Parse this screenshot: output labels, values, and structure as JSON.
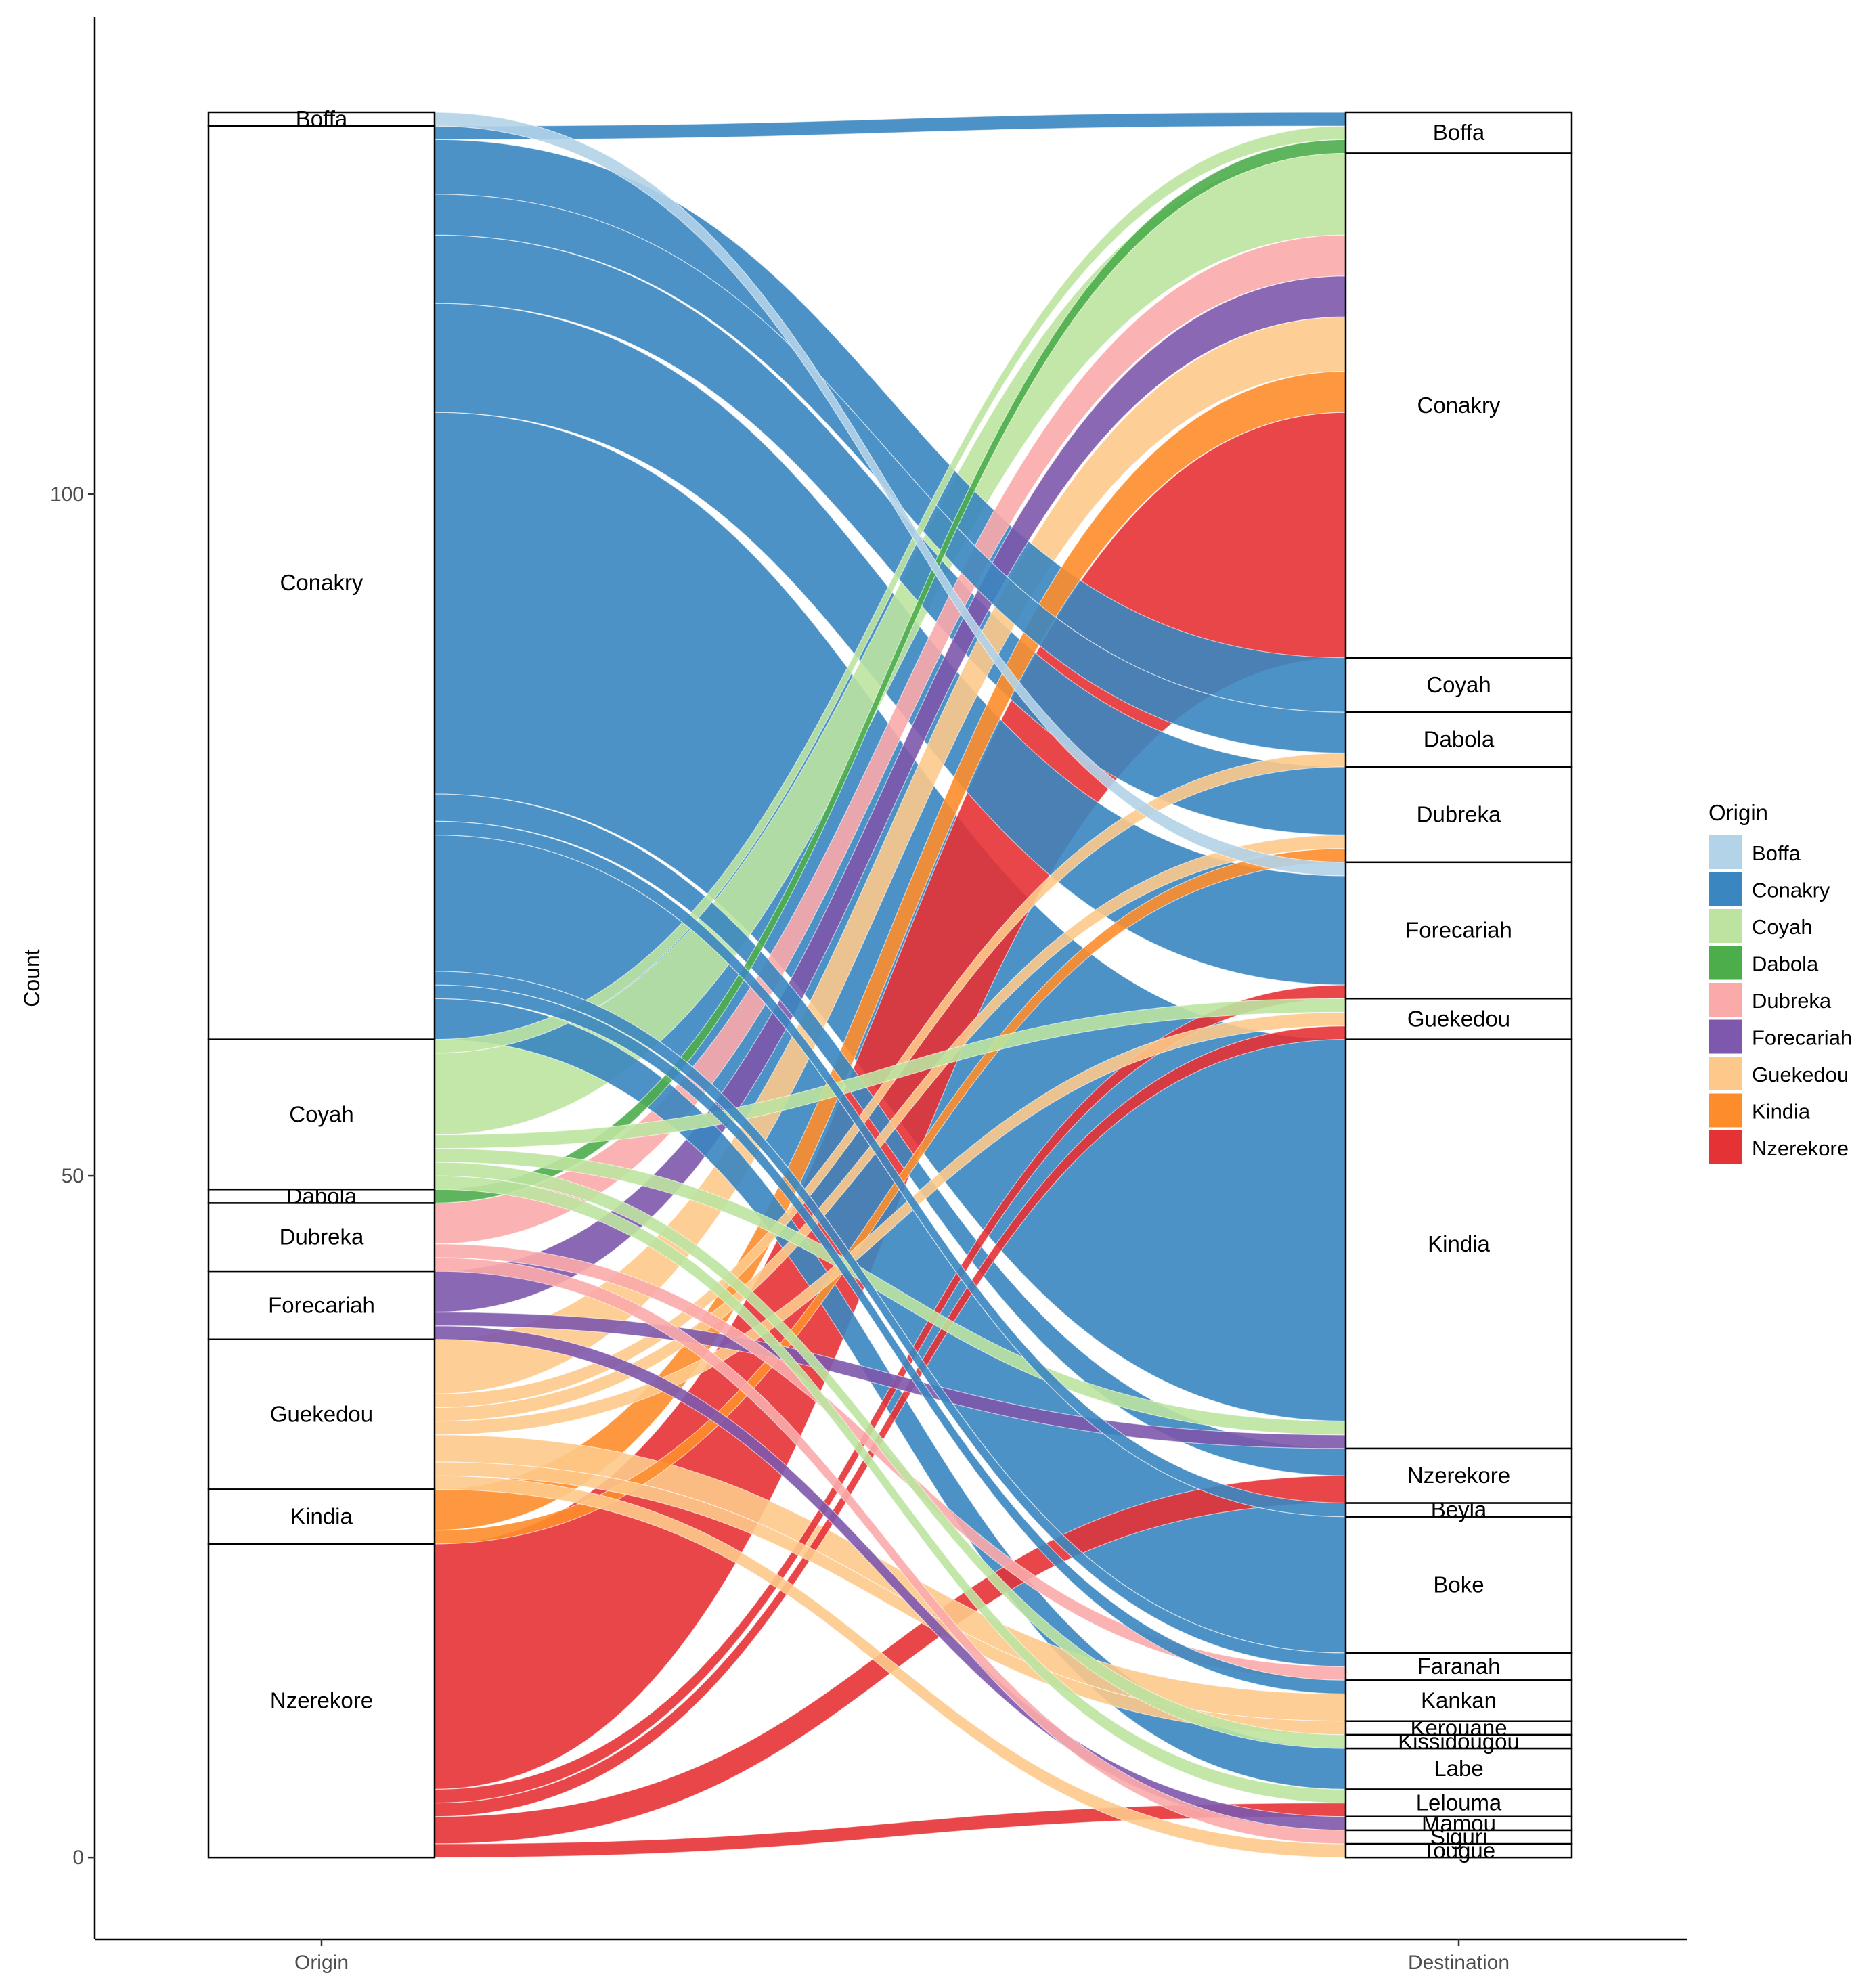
{
  "chart_data": {
    "type": "alluvial",
    "ylabel": "Count",
    "xlabel": "",
    "axes": [
      "Origin",
      "Destination"
    ],
    "ylim": [
      -6,
      135
    ],
    "yticks": [
      0,
      50,
      100
    ],
    "legend_title": "Origin",
    "legend_position": "right",
    "origin_strata": [
      "Nzerekore",
      "Kindia",
      "Guekedou",
      "Forecariah",
      "Dubreka",
      "Dabola",
      "Coyah",
      "Conakry",
      "Boffa"
    ],
    "destination_strata": [
      "Tougue",
      "Siguri",
      "Mamou",
      "Lelouma",
      "Labe",
      "Kissidougou",
      "Kerouane",
      "Kankan",
      "Faranah",
      "Boke",
      "Beyla",
      "Nzerekore",
      "Kindia",
      "Guekedou",
      "Forecariah",
      "Dubreka",
      "Dabola",
      "Coyah",
      "Conakry",
      "Boffa"
    ],
    "legend": [
      {
        "name": "Boffa",
        "color": "#b3d3e8"
      },
      {
        "name": "Conakry",
        "color": "#3a86c0"
      },
      {
        "name": "Coyah",
        "color": "#bde3a0"
      },
      {
        "name": "Dabola",
        "color": "#4cad4b"
      },
      {
        "name": "Dubreka",
        "color": "#fbaaaa"
      },
      {
        "name": "Forecariah",
        "color": "#7d58ac"
      },
      {
        "name": "Guekedou",
        "color": "#fdc98a"
      },
      {
        "name": "Kindia",
        "color": "#fd8d2b"
      },
      {
        "name": "Nzerekore",
        "color": "#e53235"
      }
    ],
    "flows": [
      {
        "origin": "Nzerekore",
        "destination": "Lelouma",
        "count": 1
      },
      {
        "origin": "Nzerekore",
        "destination": "Nzerekore",
        "count": 2
      },
      {
        "origin": "Nzerekore",
        "destination": "Guekedou",
        "count": 1
      },
      {
        "origin": "Nzerekore",
        "destination": "Forecariah",
        "count": 1
      },
      {
        "origin": "Nzerekore",
        "destination": "Conakry",
        "count": 18
      },
      {
        "origin": "Kindia",
        "destination": "Dubreka",
        "count": 1
      },
      {
        "origin": "Kindia",
        "destination": "Conakry",
        "count": 3
      },
      {
        "origin": "Guekedou",
        "destination": "Tougue",
        "count": 1
      },
      {
        "origin": "Guekedou",
        "destination": "Kankan",
        "count": 2
      },
      {
        "origin": "Guekedou",
        "destination": "Kerouane",
        "count": 1
      },
      {
        "origin": "Guekedou",
        "destination": "Guekedou",
        "count": 1
      },
      {
        "origin": "Guekedou",
        "destination": "Dubreka",
        "count": 1
      },
      {
        "origin": "Guekedou",
        "destination": "Dabola",
        "count": 1
      },
      {
        "origin": "Guekedou",
        "destination": "Conakry",
        "count": 4
      },
      {
        "origin": "Forecariah",
        "destination": "Mamou",
        "count": 1
      },
      {
        "origin": "Forecariah",
        "destination": "Kindia",
        "count": 1
      },
      {
        "origin": "Forecariah",
        "destination": "Conakry",
        "count": 3
      },
      {
        "origin": "Dubreka",
        "destination": "Siguri",
        "count": 1
      },
      {
        "origin": "Dubreka",
        "destination": "Faranah",
        "count": 1
      },
      {
        "origin": "Dubreka",
        "destination": "Conakry",
        "count": 3
      },
      {
        "origin": "Dabola",
        "destination": "Boffa",
        "count": 1
      },
      {
        "origin": "Coyah",
        "destination": "Lelouma",
        "count": 1
      },
      {
        "origin": "Coyah",
        "destination": "Kissidougou",
        "count": 1
      },
      {
        "origin": "Coyah",
        "destination": "Kindia",
        "count": 1
      },
      {
        "origin": "Coyah",
        "destination": "Guekedou",
        "count": 1
      },
      {
        "origin": "Coyah",
        "destination": "Conakry",
        "count": 6
      },
      {
        "origin": "Coyah",
        "destination": "Boffa",
        "count": 1
      },
      {
        "origin": "Conakry",
        "destination": "Labe",
        "count": 3
      },
      {
        "origin": "Conakry",
        "destination": "Kankan",
        "count": 1
      },
      {
        "origin": "Conakry",
        "destination": "Faranah",
        "count": 1
      },
      {
        "origin": "Conakry",
        "destination": "Boke",
        "count": 10
      },
      {
        "origin": "Conakry",
        "destination": "Beyla",
        "count": 1
      },
      {
        "origin": "Conakry",
        "destination": "Nzerekore",
        "count": 2
      },
      {
        "origin": "Conakry",
        "destination": "Kindia",
        "count": 28
      },
      {
        "origin": "Conakry",
        "destination": "Forecariah",
        "count": 8
      },
      {
        "origin": "Conakry",
        "destination": "Dubreka",
        "count": 5
      },
      {
        "origin": "Conakry",
        "destination": "Dabola",
        "count": 3
      },
      {
        "origin": "Conakry",
        "destination": "Coyah",
        "count": 4
      },
      {
        "origin": "Conakry",
        "destination": "Boffa",
        "count": 1
      },
      {
        "origin": "Boffa",
        "destination": "Forecariah",
        "count": 1
      }
    ]
  }
}
